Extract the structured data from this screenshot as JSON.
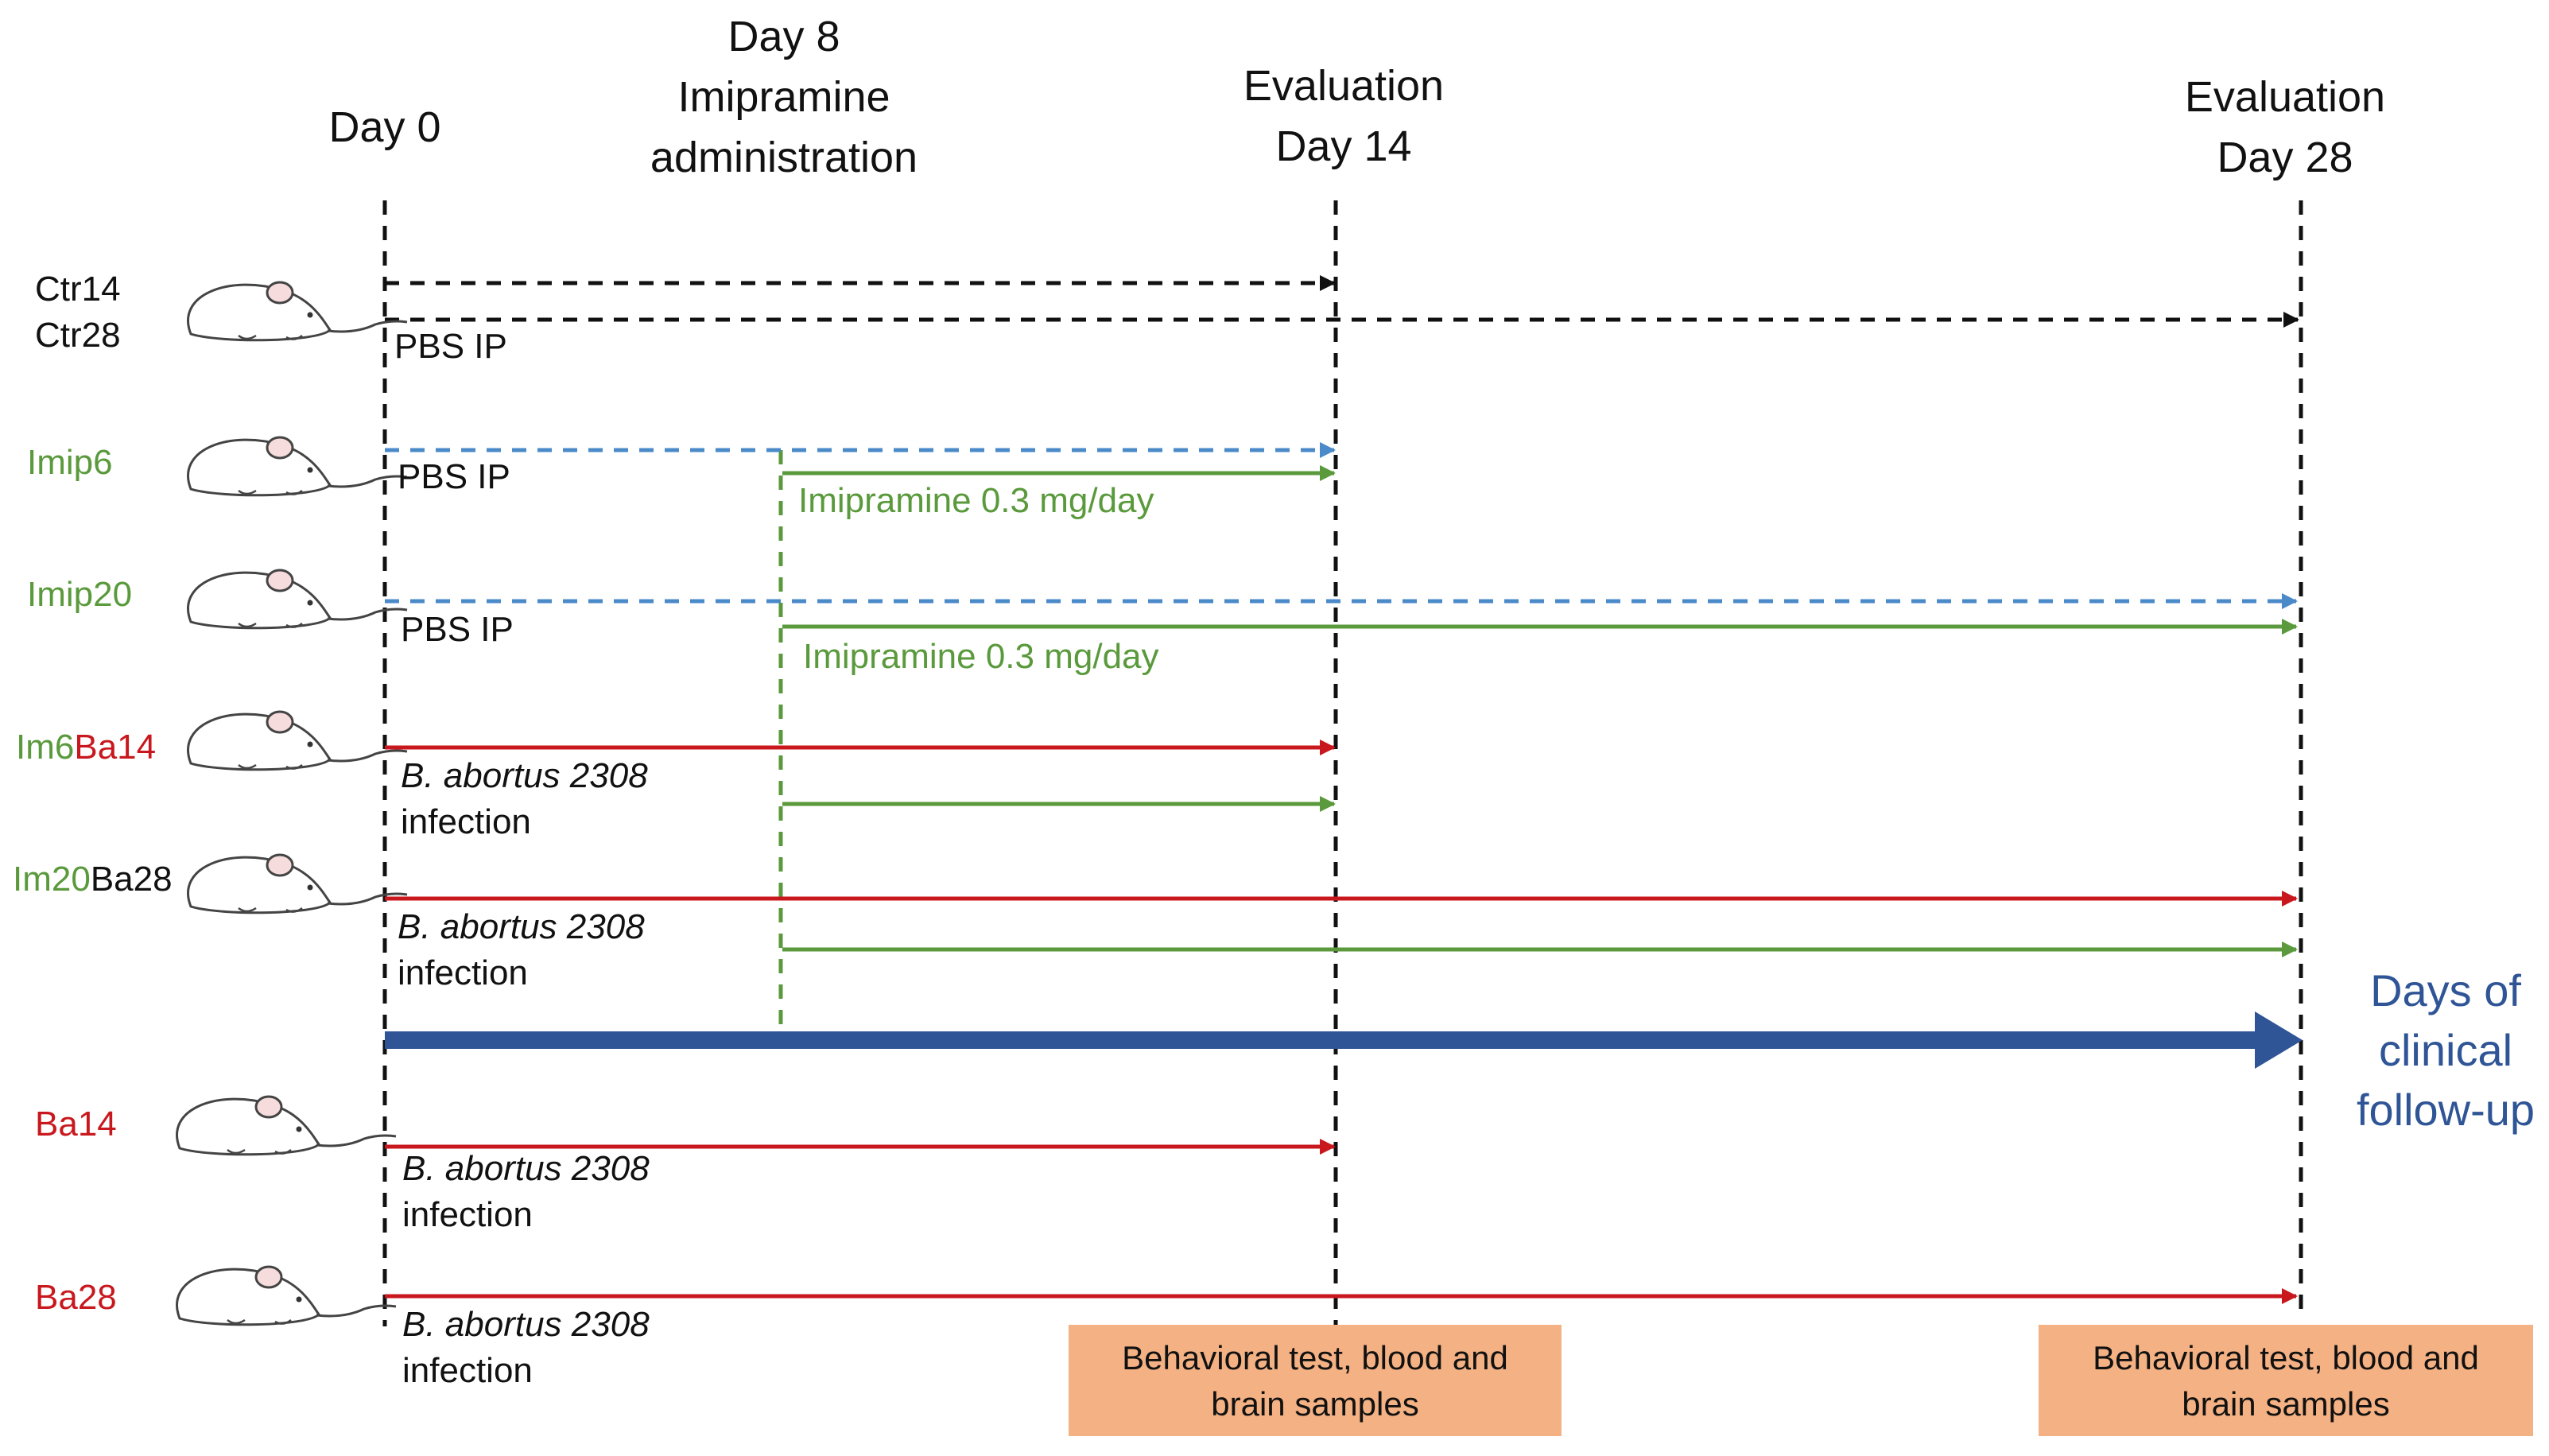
{
  "colors": {
    "black": "#111111",
    "blue_dash": "#4a8ac9",
    "green": "#5a9a3c",
    "red": "#c8181e",
    "axis_blue": "#2f5596",
    "box_fill": "#f4b183"
  },
  "header": {
    "day0": "Day 0",
    "day8_line1": "Day 8",
    "day8_line2": "Imipramine",
    "day8_line3": "administration",
    "eval14_line1": "Evaluation",
    "eval14_line2": "Day 14",
    "eval28_line1": "Evaluation",
    "eval28_line2": "Day 28"
  },
  "groups": {
    "ctr14": "Ctr14",
    "ctr28": "Ctr28",
    "imip6": "Imip6",
    "imip20": "Imip20",
    "im6ba14_a": "Im6",
    "im6ba14_b": "Ba14",
    "im20ba28_a": "Im20",
    "im20ba28_b": "Ba28",
    "ba14": "Ba14",
    "ba28": "Ba28"
  },
  "labels": {
    "pbs": "PBS IP",
    "imipramine": "Imipramine 0.3 mg/day",
    "babortus": "B. abortus 2308",
    "infection": "infection"
  },
  "axis": {
    "line1": "Days of",
    "line2": "clinical",
    "line3": "follow-up"
  },
  "boxes": {
    "line1": "Behavioral test, blood and",
    "line2": "brain samples"
  },
  "icons": {
    "mouse": "mouse-icon"
  }
}
